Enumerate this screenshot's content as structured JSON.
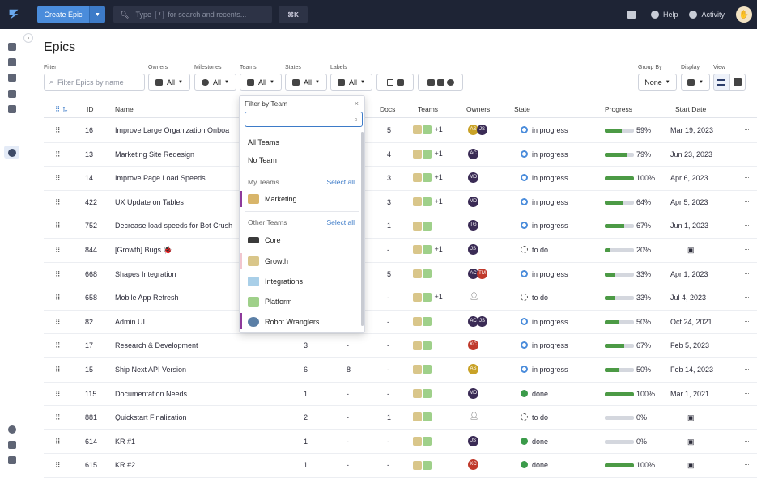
{
  "topbar": {
    "create_label": "Create Epic",
    "search_placeholder": "Type",
    "search_key": "/",
    "search_hint": "for search and recents...",
    "shortcut": "⌘K",
    "help": "Help",
    "activity": "Activity"
  },
  "page": {
    "title": "Epics"
  },
  "filters": {
    "filter_label": "Filter",
    "filter_placeholder": "Filter Epics by name",
    "owners_label": "Owners",
    "owners_value": "All",
    "milestones_label": "Milestones",
    "milestones_value": "All",
    "teams_label": "Teams",
    "teams_value": "All",
    "states_label": "States",
    "states_value": "All",
    "labels_label": "Labels",
    "labels_value": "All",
    "groupby_label": "Group By",
    "groupby_value": "None",
    "display_label": "Display",
    "view_label": "View"
  },
  "table": {
    "headers": {
      "id": "ID",
      "name": "Name",
      "docs": "Docs",
      "teams": "Teams",
      "owners": "Owners",
      "state": "State",
      "progress": "Progress",
      "start": "Start Date"
    },
    "rows": [
      {
        "id": "16",
        "name": "Improve Large Organization Onboa",
        "col1": "",
        "col2": "",
        "docs": "5",
        "teams_extra": "+1",
        "owners": [
          {
            "t": "AS",
            "c": "#c9a227"
          },
          {
            "t": "JS",
            "c": "#3a2b55"
          }
        ],
        "state": "in progress",
        "state_kind": "progress",
        "pct": "59%",
        "pct_val": 59,
        "start": "Mar 19, 2023"
      },
      {
        "id": "13",
        "name": "Marketing Site Redesign",
        "col1": "",
        "col2": "",
        "docs": "4",
        "teams_extra": "+1",
        "owners": [
          {
            "t": "AC",
            "c": "#3a2b55"
          }
        ],
        "state": "in progress",
        "state_kind": "progress",
        "pct": "79%",
        "pct_val": 79,
        "start": "Jun 23, 2023"
      },
      {
        "id": "14",
        "name": "Improve Page Load Speeds",
        "col1": "",
        "col2": "",
        "docs": "3",
        "teams_extra": "+1",
        "owners": [
          {
            "t": "MD",
            "c": "#3a2b55"
          }
        ],
        "state": "in progress",
        "state_kind": "progress",
        "pct": "100%",
        "pct_val": 100,
        "start": "Apr 6, 2023"
      },
      {
        "id": "422",
        "name": "UX Update on Tables",
        "col1": "",
        "col2": "",
        "docs": "3",
        "teams_extra": "+1",
        "owners": [
          {
            "t": "MD",
            "c": "#3a2b55"
          }
        ],
        "state": "in progress",
        "state_kind": "progress",
        "pct": "64%",
        "pct_val": 64,
        "start": "Apr 5, 2023"
      },
      {
        "id": "752",
        "name": "Decrease load speeds for Bot Crush",
        "col1": "",
        "col2": "",
        "docs": "1",
        "teams_extra": "",
        "owners": [
          {
            "t": "TG",
            "c": "#3a2b55"
          }
        ],
        "state": "in progress",
        "state_kind": "progress",
        "pct": "67%",
        "pct_val": 67,
        "start": "Jun 1, 2023"
      },
      {
        "id": "844",
        "name": "[Growth] Bugs 🐞",
        "col1": "",
        "col2": "",
        "docs": "-",
        "teams_extra": "+1",
        "owners": [
          {
            "t": "JS",
            "c": "#3a2b55"
          }
        ],
        "state": "to do",
        "state_kind": "todo",
        "pct": "20%",
        "pct_val": 20,
        "start": ""
      },
      {
        "id": "668",
        "name": "Shapes Integration",
        "col1": "",
        "col2": "",
        "docs": "5",
        "teams_extra": "",
        "owners": [
          {
            "t": "AC",
            "c": "#3a2b55"
          },
          {
            "t": "TM",
            "c": "#c0392b"
          }
        ],
        "state": "in progress",
        "state_kind": "progress",
        "pct": "33%",
        "pct_val": 33,
        "start": "Apr 1, 2023"
      },
      {
        "id": "658",
        "name": "Mobile App Refresh",
        "col1": "",
        "col2": "",
        "docs": "-",
        "teams_extra": "+1",
        "owners": [],
        "state": "to do",
        "state_kind": "todo",
        "pct": "33%",
        "pct_val": 33,
        "start": "Jul 4, 2023"
      },
      {
        "id": "82",
        "name": "Admin UI",
        "col1": "",
        "col2": "",
        "docs": "-",
        "teams_extra": "",
        "owners": [
          {
            "t": "AC",
            "c": "#3a2b55"
          },
          {
            "t": "JS",
            "c": "#3a2b55"
          }
        ],
        "state": "in progress",
        "state_kind": "progress",
        "pct": "50%",
        "pct_val": 50,
        "start": "Oct 24, 2021"
      },
      {
        "id": "17",
        "name": "Research & Development",
        "col1": "3",
        "col2": "-",
        "docs": "-",
        "teams_extra": "",
        "owners": [
          {
            "t": "KC",
            "c": "#c0392b"
          }
        ],
        "state": "in progress",
        "state_kind": "progress",
        "pct": "67%",
        "pct_val": 67,
        "start": "Feb 5, 2023"
      },
      {
        "id": "15",
        "name": "Ship Next API Version",
        "col1": "6",
        "col2": "8",
        "docs": "-",
        "teams_extra": "",
        "owners": [
          {
            "t": "AS",
            "c": "#c9a227"
          }
        ],
        "state": "in progress",
        "state_kind": "progress",
        "pct": "50%",
        "pct_val": 50,
        "start": "Feb 14, 2023"
      },
      {
        "id": "115",
        "name": "Documentation Needs",
        "col1": "1",
        "col2": "-",
        "docs": "-",
        "teams_extra": "",
        "owners": [
          {
            "t": "MD",
            "c": "#3a2b55"
          }
        ],
        "state": "done",
        "state_kind": "done",
        "pct": "100%",
        "pct_val": 100,
        "start": "Mar 1, 2021"
      },
      {
        "id": "881",
        "name": "Quickstart Finalization",
        "col1": "2",
        "col2": "-",
        "docs": "1",
        "teams_extra": "",
        "owners": [],
        "state": "to do",
        "state_kind": "todo",
        "pct": "0%",
        "pct_val": 0,
        "start": ""
      },
      {
        "id": "614",
        "name": "KR #1",
        "col1": "1",
        "col2": "-",
        "docs": "-",
        "teams_extra": "",
        "owners": [
          {
            "t": "JS",
            "c": "#3a2b55"
          }
        ],
        "state": "done",
        "state_kind": "done",
        "pct": "0%",
        "pct_val": 0,
        "start": ""
      },
      {
        "id": "615",
        "name": "KR #2",
        "col1": "1",
        "col2": "-",
        "docs": "-",
        "teams_extra": "",
        "owners": [
          {
            "t": "KC",
            "c": "#c0392b"
          }
        ],
        "state": "done",
        "state_kind": "done",
        "pct": "100%",
        "pct_val": 100,
        "start": ""
      }
    ]
  },
  "team_popup": {
    "title": "Filter by Team",
    "all_teams": "All Teams",
    "no_team": "No Team",
    "my_teams_label": "My Teams",
    "select_all": "Select all",
    "my_teams": [
      "Marketing"
    ],
    "other_teams_label": "Other Teams",
    "other_teams": [
      "Core",
      "Growth",
      "Integrations",
      "Platform",
      "Robot Wranglers"
    ]
  }
}
